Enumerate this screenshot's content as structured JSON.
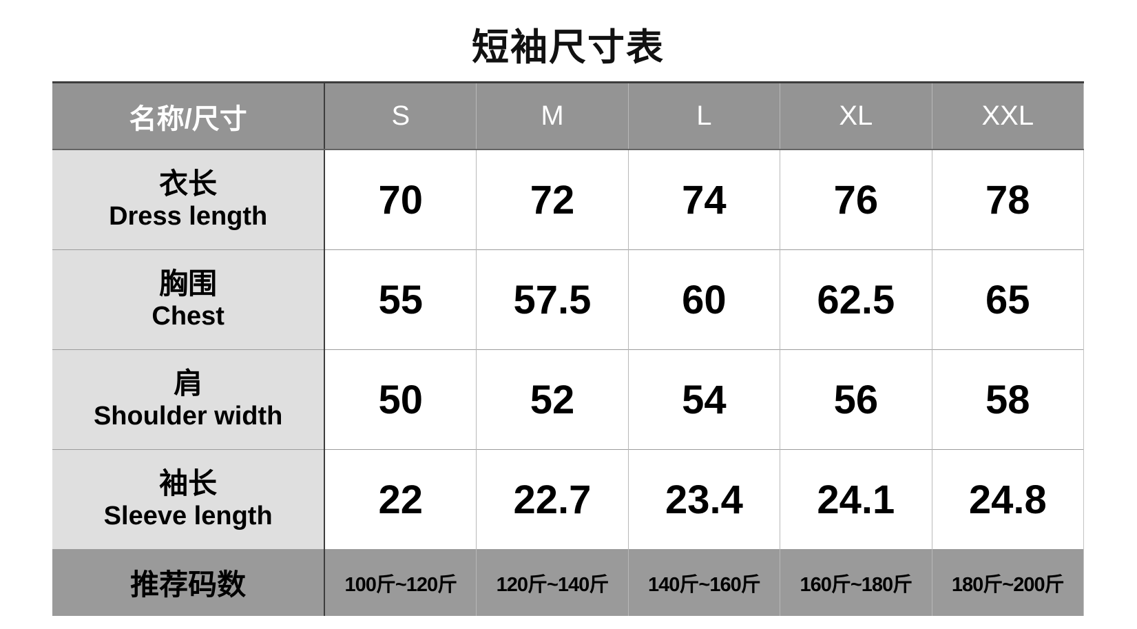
{
  "page": {
    "title": "短袖尺寸表"
  },
  "colors": {
    "header_bg": "#949494",
    "footer_bg": "#9a9a9a",
    "label_bg": "#dfdfdf",
    "header_text": "#ffffff",
    "border_dark": "#3d3d3d"
  },
  "table": {
    "header": {
      "label": "名称/尺寸",
      "sizes": [
        "S",
        "M",
        "L",
        "XL",
        "XXL"
      ]
    },
    "rows": [
      {
        "name_zh": "衣长",
        "name_en": "Dress length",
        "values": [
          "70",
          "72",
          "74",
          "76",
          "78"
        ]
      },
      {
        "name_zh": "胸围",
        "name_en": "Chest",
        "values": [
          "55",
          "57.5",
          "60",
          "62.5",
          "65"
        ]
      },
      {
        "name_zh": "肩",
        "name_en": "Shoulder width",
        "values": [
          "50",
          "52",
          "54",
          "56",
          "58"
        ]
      },
      {
        "name_zh": "袖长",
        "name_en": "Sleeve length",
        "values": [
          "22",
          "22.7",
          "23.4",
          "24.1",
          "24.8"
        ]
      }
    ],
    "footer": {
      "label": "推荐码数",
      "values": [
        "100斤~120斤",
        "120斤~140斤",
        "140斤~160斤",
        "160斤~180斤",
        "180斤~200斤"
      ]
    }
  },
  "chart_data": {
    "type": "table",
    "title": "短袖尺寸表",
    "columns": [
      "名称/尺寸",
      "S",
      "M",
      "L",
      "XL",
      "XXL"
    ],
    "rows": [
      [
        "衣长 Dress length",
        70,
        72,
        74,
        76,
        78
      ],
      [
        "胸围 Chest",
        55,
        57.5,
        60,
        62.5,
        65
      ],
      [
        "肩 Shoulder width",
        50,
        52,
        54,
        56,
        58
      ],
      [
        "袖长 Sleeve length",
        22,
        22.7,
        23.4,
        24.1,
        24.8
      ],
      [
        "推荐码数",
        "100斤~120斤",
        "120斤~140斤",
        "140斤~160斤",
        "160斤~180斤",
        "180斤~200斤"
      ]
    ]
  }
}
